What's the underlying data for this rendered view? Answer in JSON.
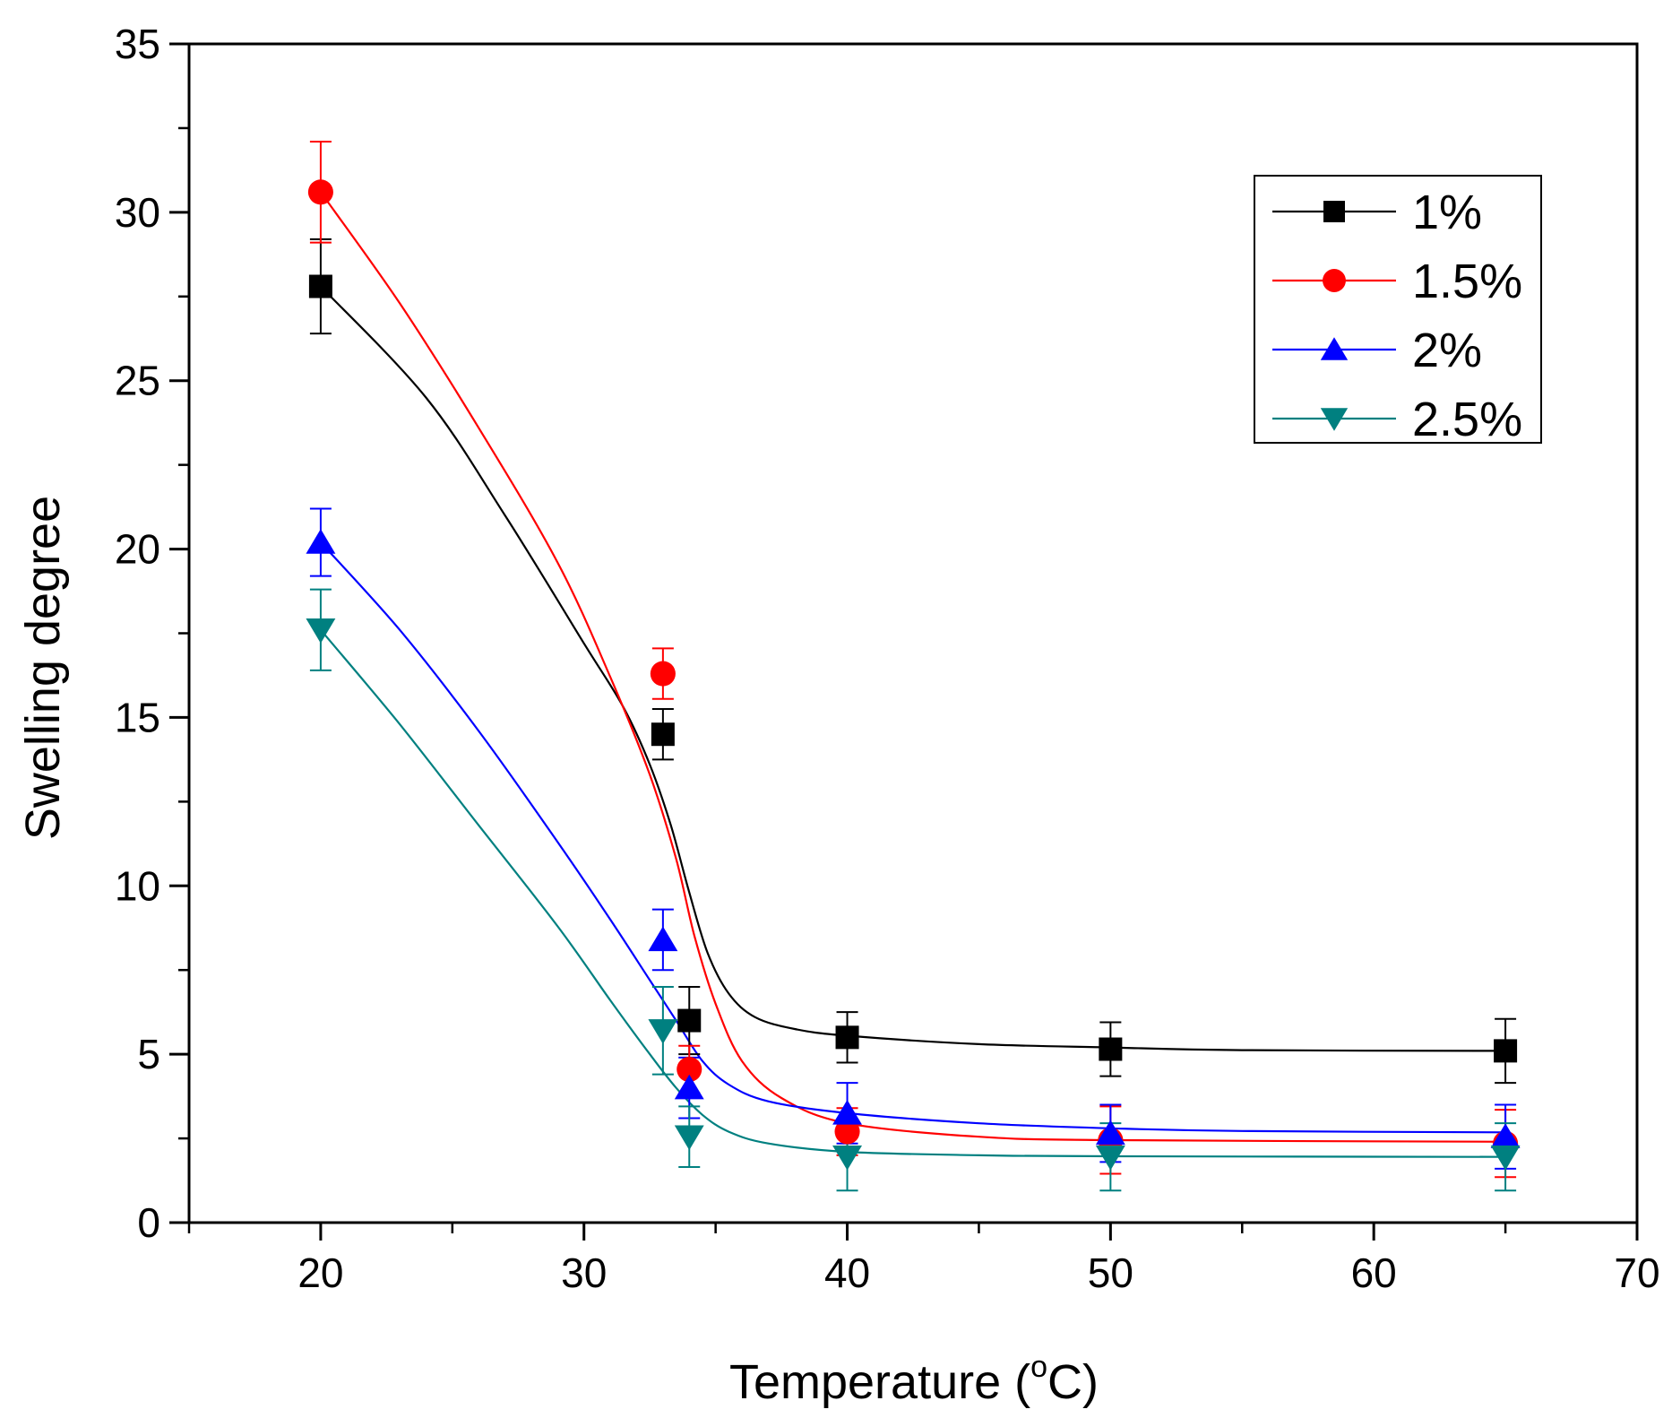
{
  "chart_data": {
    "type": "scatter",
    "title": "",
    "xlabel": "Temperature (",
    "xlabel_sup": "o",
    "xlabel_unit": "C)",
    "ylabel": "Swelling degree",
    "xlim": [
      15,
      70
    ],
    "ylim": [
      0,
      35
    ],
    "x_major_ticks": [
      20,
      30,
      40,
      50,
      60,
      70
    ],
    "x_minor_ticks": [
      15,
      25,
      35,
      45,
      55,
      65
    ],
    "y_major_ticks": [
      0,
      5,
      10,
      15,
      20,
      25,
      30,
      35
    ],
    "y_minor_step": 2.5,
    "grid": false,
    "legend_position": "top-right",
    "series": [
      {
        "name": "1%",
        "color": "#000000",
        "marker": "square",
        "x": [
          20,
          33,
          34,
          40,
          50,
          65
        ],
        "y": [
          27.8,
          14.5,
          6.0,
          5.5,
          5.15,
          5.1
        ],
        "err": [
          1.4,
          0.75,
          1.0,
          0.75,
          0.8,
          0.95
        ],
        "fit": [
          [
            20,
            27.8
          ],
          [
            24,
            24.5
          ],
          [
            27,
            21.0
          ],
          [
            30,
            17.2
          ],
          [
            31.5,
            15.3
          ],
          [
            32.5,
            13.6
          ],
          [
            33.3,
            11.8
          ],
          [
            34,
            9.8
          ],
          [
            34.7,
            8.0
          ],
          [
            35.5,
            6.8
          ],
          [
            36.5,
            6.1
          ],
          [
            38,
            5.75
          ],
          [
            40,
            5.55
          ],
          [
            45,
            5.3
          ],
          [
            50,
            5.2
          ],
          [
            55,
            5.12
          ],
          [
            65,
            5.1
          ]
        ]
      },
      {
        "name": "1.5%",
        "color": "#ff0000",
        "marker": "circle",
        "x": [
          20,
          33,
          34,
          40,
          50,
          65
        ],
        "y": [
          30.6,
          16.3,
          4.55,
          2.7,
          2.45,
          2.35
        ],
        "err": [
          1.5,
          0.75,
          0.7,
          0.7,
          1.0,
          1.0
        ],
        "fit": [
          [
            20,
            30.6
          ],
          [
            23,
            27.3
          ],
          [
            26,
            23.6
          ],
          [
            29,
            19.6
          ],
          [
            31,
            16.2
          ],
          [
            32.5,
            13.3
          ],
          [
            33.5,
            10.8
          ],
          [
            34.2,
            8.5
          ],
          [
            35,
            6.5
          ],
          [
            36,
            4.8
          ],
          [
            37.5,
            3.7
          ],
          [
            40,
            2.95
          ],
          [
            45,
            2.55
          ],
          [
            50,
            2.45
          ],
          [
            65,
            2.4
          ]
        ]
      },
      {
        "name": "2%",
        "color": "#0000ff",
        "marker": "triangle-up",
        "x": [
          20,
          33,
          34,
          40,
          50,
          65
        ],
        "y": [
          20.2,
          8.4,
          4.0,
          3.25,
          2.65,
          2.55
        ],
        "err": [
          1.0,
          0.9,
          0.9,
          0.9,
          0.85,
          0.95
        ],
        "fit": [
          [
            20,
            20.2
          ],
          [
            23,
            17.6
          ],
          [
            26,
            14.6
          ],
          [
            29,
            11.3
          ],
          [
            31,
            9.0
          ],
          [
            32.5,
            7.2
          ],
          [
            33.5,
            6.0
          ],
          [
            34.5,
            4.8
          ],
          [
            35.5,
            4.1
          ],
          [
            37,
            3.6
          ],
          [
            40,
            3.25
          ],
          [
            45,
            2.95
          ],
          [
            50,
            2.8
          ],
          [
            55,
            2.72
          ],
          [
            65,
            2.68
          ]
        ]
      },
      {
        "name": "2.5%",
        "color": "#008080",
        "marker": "triangle-down",
        "x": [
          20,
          33,
          34,
          40,
          50,
          65
        ],
        "y": [
          17.6,
          5.7,
          2.55,
          1.95,
          1.95,
          1.95
        ],
        "err": [
          1.2,
          1.3,
          0.9,
          1.0,
          1.0,
          1.0
        ],
        "fit": [
          [
            20,
            17.6
          ],
          [
            23,
            14.8
          ],
          [
            26,
            11.8
          ],
          [
            29,
            8.8
          ],
          [
            31,
            6.6
          ],
          [
            32.5,
            5.0
          ],
          [
            33.5,
            4.0
          ],
          [
            34.5,
            3.2
          ],
          [
            35.5,
            2.7
          ],
          [
            37,
            2.35
          ],
          [
            40,
            2.1
          ],
          [
            45,
            2.0
          ],
          [
            50,
            1.97
          ],
          [
            65,
            1.95
          ]
        ]
      }
    ]
  }
}
